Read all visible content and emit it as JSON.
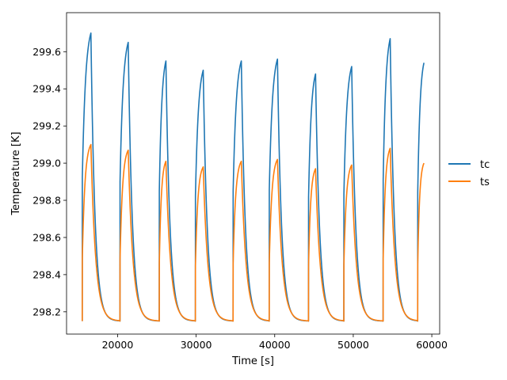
{
  "chart_data": {
    "type": "line",
    "title": "",
    "xlabel": "Time [s]",
    "ylabel": "Temperature [K]",
    "xlim": [
      13500,
      61000
    ],
    "ylim": [
      298.08,
      299.81
    ],
    "x_ticks": [
      20000,
      30000,
      40000,
      50000,
      60000
    ],
    "x_tick_labels": [
      "20000",
      "30000",
      "40000",
      "50000",
      "60000"
    ],
    "y_ticks": [
      298.2,
      298.4,
      298.6,
      298.8,
      299.0,
      299.2,
      299.4,
      299.6
    ],
    "y_tick_labels": [
      "298.2",
      "298.4",
      "298.6",
      "298.8",
      "299.0",
      "299.2",
      "299.4",
      "299.6"
    ],
    "grid": false,
    "legend_position": "outside-right",
    "baseline": 298.15,
    "cycles": [
      {
        "start": 15500,
        "peak_time": 16600,
        "tc_peak": 299.7,
        "ts_peak": 299.1
      },
      {
        "start": 20300,
        "peak_time": 21350,
        "tc_peak": 299.65,
        "ts_peak": 299.07
      },
      {
        "start": 25300,
        "peak_time": 26150,
        "tc_peak": 299.55,
        "ts_peak": 299.01
      },
      {
        "start": 29900,
        "peak_time": 30900,
        "tc_peak": 299.5,
        "ts_peak": 298.98
      },
      {
        "start": 34700,
        "peak_time": 35750,
        "tc_peak": 299.55,
        "ts_peak": 299.01
      },
      {
        "start": 39300,
        "peak_time": 40350,
        "tc_peak": 299.56,
        "ts_peak": 299.02
      },
      {
        "start": 44300,
        "peak_time": 45200,
        "tc_peak": 299.48,
        "ts_peak": 298.97
      },
      {
        "start": 48800,
        "peak_time": 49800,
        "tc_peak": 299.52,
        "ts_peak": 298.99
      },
      {
        "start": 53800,
        "peak_time": 54700,
        "tc_peak": 299.67,
        "ts_peak": 299.08
      },
      {
        "start": 58200,
        "peak_time": 59000,
        "tc_peak": 299.54,
        "ts_peak": 299.0
      }
    ],
    "series": [
      {
        "name": "tc",
        "color": "#1f77b4"
      },
      {
        "name": "ts",
        "color": "#ff7f0e"
      }
    ]
  }
}
